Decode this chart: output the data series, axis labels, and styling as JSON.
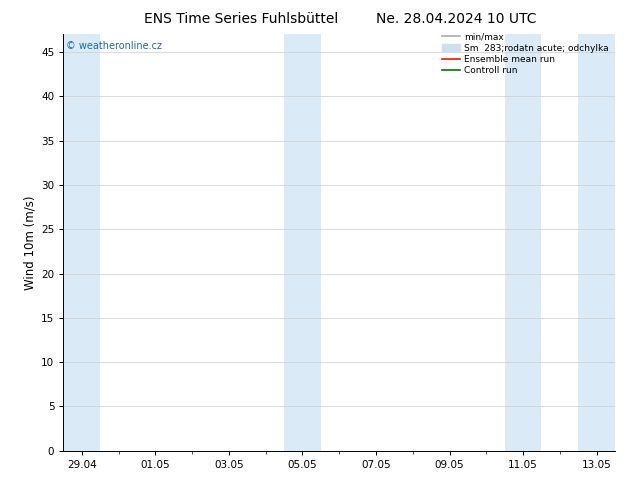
{
  "title_left": "ENS Time Series Fuhlsbüttel",
  "title_right": "Ne. 28.04.2024 10 UTC",
  "ylabel": "Wind 10m (m/s)",
  "watermark": "© weatheronline.cz",
  "watermark_color": "#1a6aab",
  "ylim": [
    0,
    47
  ],
  "yticks": [
    0,
    5,
    10,
    15,
    20,
    25,
    30,
    35,
    40,
    45
  ],
  "xtick_labels": [
    "29.04",
    "01.05",
    "03.05",
    "05.05",
    "07.05",
    "09.05",
    "11.05",
    "13.05"
  ],
  "xtick_positions": [
    0,
    2,
    4,
    6,
    8,
    10,
    12,
    14
  ],
  "xlim": [
    -0.5,
    14.5
  ],
  "bg_color": "#ffffff",
  "plot_bg_color": "#ffffff",
  "shaded_color": "#daeaf7",
  "shaded_positions": [
    [
      -0.5,
      0.5
    ],
    [
      5.5,
      6.5
    ],
    [
      11.5,
      12.5
    ],
    [
      13.5,
      14.5
    ]
  ],
  "grid_color": "#cccccc",
  "legend_items": [
    {
      "label": "min/max",
      "color": "#aaaaaa",
      "lw": 1.2,
      "type": "line"
    },
    {
      "label": "Sm  283;rodatn acute; odchylka",
      "color": "#cce0f0",
      "lw": 6,
      "type": "patch"
    },
    {
      "label": "Ensemble mean run",
      "color": "#dd2200",
      "lw": 1.2,
      "type": "line"
    },
    {
      "label": "Controll run",
      "color": "#007700",
      "lw": 1.2,
      "type": "line"
    }
  ],
  "title_fontsize": 10,
  "tick_fontsize": 7.5,
  "ylabel_fontsize": 8.5,
  "legend_fontsize": 6.5,
  "watermark_fontsize": 7
}
